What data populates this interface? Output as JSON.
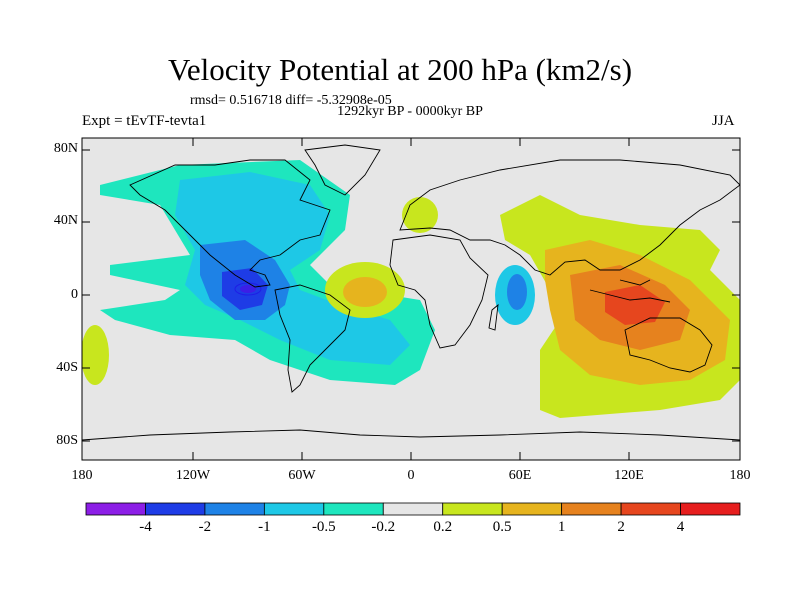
{
  "title": "Velocity Potential at 200 hPa (km2/s)",
  "stats": "rmsd= 0.516718 diff= -5.32908e-05",
  "period": "1292kyr BP - 0000kyr BP",
  "expt": "Expt = tEvTF-tevta1",
  "season": "JJA",
  "map": {
    "projection": "cylindrical equidistant",
    "lon_range": [
      -180,
      180
    ],
    "lat_range": [
      -90,
      90
    ],
    "background_color": "#e6e6e6",
    "y_ticks": [
      "80N",
      "40N",
      "0",
      "40S",
      "80S"
    ],
    "x_ticks": [
      "180",
      "120W",
      "60W",
      "0",
      "60E",
      "120E",
      "180"
    ],
    "fields": [
      {
        "region": "Central/South America & E. Pacific",
        "sign": "negative",
        "min_level": "-4"
      },
      {
        "region": "Indian Ocean W",
        "sign": "negative",
        "level": "-0.5"
      },
      {
        "region": "Maritime Continent & Australia",
        "sign": "positive",
        "max_level": "2"
      },
      {
        "region": "Tropical Atlantic",
        "sign": "positive",
        "level": "0.5"
      }
    ]
  },
  "colorbar": {
    "labels": [
      "-4",
      "-2",
      "-1",
      "-0.5",
      "-0.2",
      "0.2",
      "0.5",
      "1",
      "2",
      "4"
    ],
    "colors": [
      "#8c1ee6",
      "#1e3ce6",
      "#1e82e6",
      "#1ec8e6",
      "#1ee6be",
      "#e6e6e6",
      "#c8e61e",
      "#e6b41e",
      "#e6821e",
      "#e6461e",
      "#e61e1e"
    ]
  }
}
